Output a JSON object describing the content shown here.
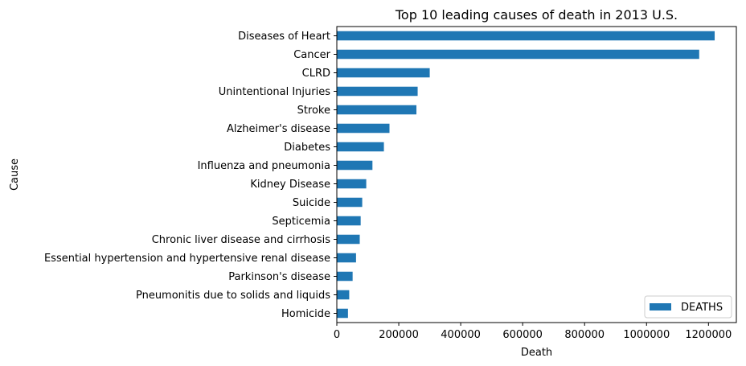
{
  "chart_data": {
    "type": "bar",
    "orientation": "horizontal",
    "title": "Top 10 leading causes of death in 2013 U.S.",
    "xlabel": "Death",
    "ylabel": "Cause",
    "xlim": [
      0,
      1290000
    ],
    "xticks": [
      0,
      200000,
      400000,
      600000,
      800000,
      1000000,
      1200000
    ],
    "xtick_labels": [
      "0",
      "200000",
      "400000",
      "600000",
      "800000",
      "1000000",
      "1200000"
    ],
    "grid": false,
    "legend_position": "bottom-right",
    "categories": [
      "Diseases of Heart",
      "Cancer",
      "CLRD",
      "Unintentional Injuries",
      "Stroke",
      "Alzheimer's disease",
      "Diabetes",
      "Influenza and pneumonia",
      "Kidney Disease",
      "Suicide",
      "Septicemia",
      "Chronic liver disease and cirrhosis",
      "Essential hypertension and hypertensive renal disease",
      "Parkinson's disease",
      "Pneumonitis due to solids and liquids",
      "Homicide"
    ],
    "series": [
      {
        "name": "DEATHS",
        "color": "#1f77b4",
        "values": [
          1220000,
          1170000,
          300000,
          261000,
          257000,
          170000,
          152000,
          115000,
          95000,
          82000,
          77000,
          74000,
          62000,
          51000,
          40000,
          36000
        ]
      }
    ]
  }
}
